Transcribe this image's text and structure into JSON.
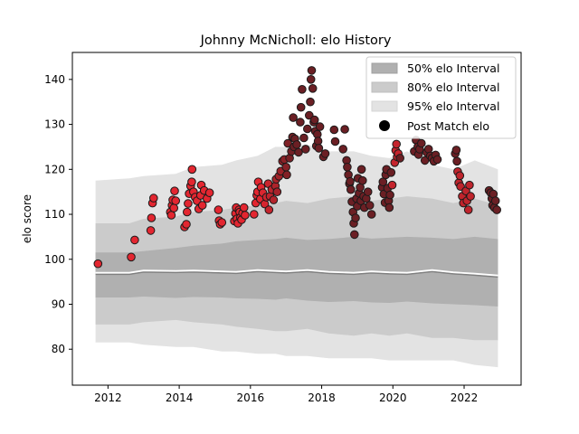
{
  "chart_data": {
    "type": "scatter",
    "title": "Johnny McNicholl: elo History",
    "xlabel": "",
    "ylabel": "elo score",
    "xlim": [
      2011.0,
      2023.6
    ],
    "ylim": [
      72,
      146
    ],
    "x_ticks": [
      2012,
      2014,
      2016,
      2018,
      2020,
      2022
    ],
    "x_tick_labels": [
      "2012",
      "2014",
      "2016",
      "2018",
      "2020",
      "2022"
    ],
    "y_ticks": [
      80,
      90,
      100,
      110,
      120,
      130,
      140
    ],
    "y_tick_labels": [
      "80",
      "90",
      "100",
      "110",
      "120",
      "130",
      "140"
    ],
    "legend": {
      "position": "top-right",
      "entries": [
        {
          "label": "50% elo Interval",
          "color": "#b0b0b0"
        },
        {
          "label": "80% elo Interval",
          "color": "#cbcbcb"
        },
        {
          "label": "95% elo Interval",
          "color": "#e3e3e3"
        },
        {
          "label": "Post Match elo",
          "color": "#000000"
        }
      ]
    },
    "colors": {
      "band50": "#b0b0b0",
      "band80": "#cbcbcb",
      "band95": "#e3e3e3",
      "median_line": "#ffffff",
      "dark_line": "#808080",
      "point_edge": "#1a1a1a",
      "early_point": "#e32630",
      "late_point": "#6b1f24"
    },
    "intervals": {
      "x": [
        2011.65,
        2012.6,
        2013.0,
        2013.9,
        2014.4,
        2015.2,
        2015.6,
        2016.2,
        2016.7,
        2017.0,
        2017.6,
        2018.2,
        2018.9,
        2019.4,
        2019.9,
        2020.4,
        2021.1,
        2021.7,
        2022.3,
        2022.95
      ],
      "median": [
        97,
        97,
        97.5,
        97.4,
        97.5,
        97.3,
        97.2,
        97.6,
        97.4,
        97.3,
        97.6,
        97.2,
        97.0,
        97.3,
        97.1,
        97.0,
        97.6,
        97.1,
        96.8,
        96.4
      ],
      "band50_low": [
        91.5,
        91.5,
        91.7,
        91.4,
        91.6,
        91.5,
        91.3,
        91.2,
        91.0,
        91.3,
        90.8,
        90.5,
        90.7,
        90.4,
        90.3,
        90.6,
        90.2,
        90.0,
        89.8,
        89.5
      ],
      "band50_high": [
        101.5,
        101.5,
        101.8,
        102.5,
        103.0,
        103.5,
        104.0,
        104.3,
        104.5,
        104.8,
        104.3,
        104.5,
        105.0,
        104.6,
        104.8,
        105.0,
        104.8,
        104.5,
        105.0,
        104.5
      ],
      "band80_low": [
        85.5,
        85.5,
        86.0,
        86.5,
        86.0,
        85.5,
        85.0,
        84.5,
        84.0,
        84.0,
        84.5,
        83.5,
        83.0,
        83.5,
        83.0,
        83.5,
        82.5,
        82.5,
        82.0,
        82.0
      ],
      "band80_high": [
        108,
        108,
        109,
        109.5,
        110.5,
        111.0,
        111.5,
        112.0,
        112.5,
        113.0,
        112.5,
        113.5,
        114.0,
        113.0,
        113.5,
        114.0,
        113.5,
        112.5,
        113.5,
        112.0
      ],
      "band95_low": [
        81.5,
        81.5,
        81.0,
        80.5,
        80.5,
        79.5,
        79.5,
        79.0,
        79.0,
        78.5,
        78.5,
        78.0,
        78.0,
        78.0,
        77.5,
        77.5,
        77.5,
        77.5,
        76.5,
        76.0
      ],
      "band95_high": [
        117.5,
        118,
        118.5,
        119,
        120.5,
        121,
        122,
        123,
        125,
        125,
        125.5,
        124,
        124,
        123,
        122.5,
        124,
        121,
        120,
        122,
        120
      ]
    },
    "points": [
      {
        "x": 2011.72,
        "y": 99.0
      },
      {
        "x": 2012.65,
        "y": 100.5
      },
      {
        "x": 2012.75,
        "y": 104.3
      },
      {
        "x": 2013.2,
        "y": 106.4
      },
      {
        "x": 2013.22,
        "y": 109.2
      },
      {
        "x": 2013.25,
        "y": 112.5
      },
      {
        "x": 2013.28,
        "y": 113.6
      },
      {
        "x": 2013.75,
        "y": 110.5
      },
      {
        "x": 2013.78,
        "y": 109.8
      },
      {
        "x": 2013.8,
        "y": 112.0
      },
      {
        "x": 2013.82,
        "y": 113.2
      },
      {
        "x": 2013.85,
        "y": 111.4
      },
      {
        "x": 2013.87,
        "y": 115.2
      },
      {
        "x": 2013.9,
        "y": 113.0
      },
      {
        "x": 2014.15,
        "y": 107.2
      },
      {
        "x": 2014.2,
        "y": 107.8
      },
      {
        "x": 2014.22,
        "y": 110.5
      },
      {
        "x": 2014.25,
        "y": 112.4
      },
      {
        "x": 2014.28,
        "y": 114.6
      },
      {
        "x": 2014.32,
        "y": 116.3
      },
      {
        "x": 2014.35,
        "y": 117.2
      },
      {
        "x": 2014.36,
        "y": 120.0
      },
      {
        "x": 2014.4,
        "y": 115.0
      },
      {
        "x": 2014.45,
        "y": 113.8
      },
      {
        "x": 2014.5,
        "y": 113.0
      },
      {
        "x": 2014.55,
        "y": 111.2
      },
      {
        "x": 2014.6,
        "y": 114.2
      },
      {
        "x": 2014.62,
        "y": 116.5
      },
      {
        "x": 2014.65,
        "y": 112.0
      },
      {
        "x": 2014.7,
        "y": 115.3
      },
      {
        "x": 2014.78,
        "y": 113.5
      },
      {
        "x": 2014.85,
        "y": 114.8
      },
      {
        "x": 2015.1,
        "y": 111.0
      },
      {
        "x": 2015.12,
        "y": 108.6
      },
      {
        "x": 2015.15,
        "y": 107.8
      },
      {
        "x": 2015.2,
        "y": 108.2
      },
      {
        "x": 2015.55,
        "y": 108.5
      },
      {
        "x": 2015.58,
        "y": 110.2
      },
      {
        "x": 2015.6,
        "y": 111.5
      },
      {
        "x": 2015.62,
        "y": 109.0
      },
      {
        "x": 2015.65,
        "y": 108.0
      },
      {
        "x": 2015.68,
        "y": 111.0
      },
      {
        "x": 2015.7,
        "y": 110.5
      },
      {
        "x": 2015.72,
        "y": 109.3
      },
      {
        "x": 2015.75,
        "y": 108.8
      },
      {
        "x": 2015.78,
        "y": 110.3
      },
      {
        "x": 2015.82,
        "y": 111.5
      },
      {
        "x": 2015.85,
        "y": 109.8
      },
      {
        "x": 2016.1,
        "y": 110.0
      },
      {
        "x": 2016.15,
        "y": 112.5
      },
      {
        "x": 2016.18,
        "y": 114.2
      },
      {
        "x": 2016.2,
        "y": 115.0
      },
      {
        "x": 2016.22,
        "y": 117.2
      },
      {
        "x": 2016.28,
        "y": 113.4
      },
      {
        "x": 2016.3,
        "y": 116.0
      },
      {
        "x": 2016.35,
        "y": 114.8
      },
      {
        "x": 2016.4,
        "y": 112.3
      },
      {
        "x": 2016.45,
        "y": 113.8
      },
      {
        "x": 2016.5,
        "y": 116.8
      },
      {
        "x": 2016.52,
        "y": 111.0
      },
      {
        "x": 2016.55,
        "y": 114.0
      },
      {
        "x": 2016.6,
        "y": 115.5
      },
      {
        "x": 2016.65,
        "y": 113.2
      },
      {
        "x": 2016.7,
        "y": 116.3
      },
      {
        "x": 2016.72,
        "y": 117.8
      },
      {
        "x": 2016.75,
        "y": 115.0
      },
      {
        "x": 2016.8,
        "y": 118.5
      },
      {
        "x": 2016.85,
        "y": 119.6
      },
      {
        "x": 2016.9,
        "y": 121.8
      },
      {
        "x": 2016.95,
        "y": 122.2
      },
      {
        "x": 2017.0,
        "y": 120.5
      },
      {
        "x": 2017.02,
        "y": 118.8
      },
      {
        "x": 2017.05,
        "y": 125.8
      },
      {
        "x": 2017.1,
        "y": 122.5
      },
      {
        "x": 2017.15,
        "y": 124.0
      },
      {
        "x": 2017.18,
        "y": 127.2
      },
      {
        "x": 2017.2,
        "y": 131.5
      },
      {
        "x": 2017.22,
        "y": 125.0
      },
      {
        "x": 2017.25,
        "y": 126.8
      },
      {
        "x": 2017.3,
        "y": 125.5
      },
      {
        "x": 2017.35,
        "y": 123.8
      },
      {
        "x": 2017.4,
        "y": 130.5
      },
      {
        "x": 2017.42,
        "y": 133.8
      },
      {
        "x": 2017.45,
        "y": 137.8
      },
      {
        "x": 2017.5,
        "y": 127.0
      },
      {
        "x": 2017.55,
        "y": 124.5
      },
      {
        "x": 2017.6,
        "y": 129.0
      },
      {
        "x": 2017.65,
        "y": 132.0
      },
      {
        "x": 2017.68,
        "y": 135.0
      },
      {
        "x": 2017.7,
        "y": 140.0
      },
      {
        "x": 2017.72,
        "y": 142.0
      },
      {
        "x": 2017.75,
        "y": 138.0
      },
      {
        "x": 2017.78,
        "y": 130.5
      },
      {
        "x": 2017.8,
        "y": 131.0
      },
      {
        "x": 2017.82,
        "y": 128.5
      },
      {
        "x": 2017.85,
        "y": 125.2
      },
      {
        "x": 2017.88,
        "y": 127.8
      },
      {
        "x": 2017.9,
        "y": 126.3
      },
      {
        "x": 2017.92,
        "y": 124.7
      },
      {
        "x": 2017.95,
        "y": 129.5
      },
      {
        "x": 2018.05,
        "y": 122.8
      },
      {
        "x": 2018.1,
        "y": 123.5
      },
      {
        "x": 2018.35,
        "y": 128.8
      },
      {
        "x": 2018.38,
        "y": 126.2
      },
      {
        "x": 2018.6,
        "y": 124.5
      },
      {
        "x": 2018.65,
        "y": 128.9
      },
      {
        "x": 2018.7,
        "y": 122.0
      },
      {
        "x": 2018.72,
        "y": 120.5
      },
      {
        "x": 2018.75,
        "y": 118.8
      },
      {
        "x": 2018.78,
        "y": 116.8
      },
      {
        "x": 2018.8,
        "y": 117.3
      },
      {
        "x": 2018.82,
        "y": 115.5
      },
      {
        "x": 2018.85,
        "y": 112.8
      },
      {
        "x": 2018.88,
        "y": 110.5
      },
      {
        "x": 2018.9,
        "y": 108.0
      },
      {
        "x": 2018.92,
        "y": 105.5
      },
      {
        "x": 2018.95,
        "y": 109.2
      },
      {
        "x": 2018.98,
        "y": 113.5
      },
      {
        "x": 2019.0,
        "y": 111.8
      },
      {
        "x": 2019.02,
        "y": 118.0
      },
      {
        "x": 2019.05,
        "y": 114.7
      },
      {
        "x": 2019.08,
        "y": 116.0
      },
      {
        "x": 2019.1,
        "y": 113.0
      },
      {
        "x": 2019.12,
        "y": 120.0
      },
      {
        "x": 2019.15,
        "y": 117.5
      },
      {
        "x": 2019.18,
        "y": 114.0
      },
      {
        "x": 2019.2,
        "y": 111.5
      },
      {
        "x": 2019.25,
        "y": 113.5
      },
      {
        "x": 2019.3,
        "y": 115.0
      },
      {
        "x": 2019.35,
        "y": 112.0
      },
      {
        "x": 2019.4,
        "y": 110.0
      },
      {
        "x": 2019.7,
        "y": 116.0
      },
      {
        "x": 2019.72,
        "y": 117.2
      },
      {
        "x": 2019.75,
        "y": 114.5
      },
      {
        "x": 2019.78,
        "y": 112.6
      },
      {
        "x": 2019.8,
        "y": 118.8
      },
      {
        "x": 2019.82,
        "y": 120.0
      },
      {
        "x": 2019.85,
        "y": 115.8
      },
      {
        "x": 2019.88,
        "y": 113.0
      },
      {
        "x": 2019.9,
        "y": 111.5
      },
      {
        "x": 2019.92,
        "y": 114.3
      },
      {
        "x": 2019.95,
        "y": 119.3
      },
      {
        "x": 2019.98,
        "y": 116.5
      },
      {
        "x": 2020.05,
        "y": 121.5
      },
      {
        "x": 2020.08,
        "y": 124.2
      },
      {
        "x": 2020.1,
        "y": 125.6
      },
      {
        "x": 2020.12,
        "y": 122.8
      },
      {
        "x": 2020.15,
        "y": 123.5
      },
      {
        "x": 2020.2,
        "y": 122.5
      },
      {
        "x": 2020.6,
        "y": 124.0
      },
      {
        "x": 2020.65,
        "y": 126.5
      },
      {
        "x": 2020.7,
        "y": 125.0
      },
      {
        "x": 2020.72,
        "y": 123.3
      },
      {
        "x": 2020.75,
        "y": 124.5
      },
      {
        "x": 2020.8,
        "y": 125.8
      },
      {
        "x": 2020.9,
        "y": 122.0
      },
      {
        "x": 2020.95,
        "y": 123.8
      },
      {
        "x": 2021.0,
        "y": 124.5
      },
      {
        "x": 2021.05,
        "y": 123.0
      },
      {
        "x": 2021.1,
        "y": 122.5
      },
      {
        "x": 2021.15,
        "y": 121.8
      },
      {
        "x": 2021.2,
        "y": 123.2
      },
      {
        "x": 2021.25,
        "y": 122.2
      },
      {
        "x": 2021.75,
        "y": 123.5
      },
      {
        "x": 2021.78,
        "y": 124.3
      },
      {
        "x": 2021.8,
        "y": 121.8
      },
      {
        "x": 2021.82,
        "y": 119.5
      },
      {
        "x": 2021.85,
        "y": 117.0
      },
      {
        "x": 2021.88,
        "y": 118.6
      },
      {
        "x": 2021.9,
        "y": 116.2
      },
      {
        "x": 2021.95,
        "y": 114.0
      },
      {
        "x": 2021.98,
        "y": 112.5
      },
      {
        "x": 2022.05,
        "y": 115.2
      },
      {
        "x": 2022.08,
        "y": 113.0
      },
      {
        "x": 2022.12,
        "y": 111.0
      },
      {
        "x": 2022.15,
        "y": 116.5
      },
      {
        "x": 2022.18,
        "y": 114.0
      },
      {
        "x": 2022.7,
        "y": 115.3
      },
      {
        "x": 2022.75,
        "y": 114.8
      },
      {
        "x": 2022.78,
        "y": 113.5
      },
      {
        "x": 2022.8,
        "y": 112.0
      },
      {
        "x": 2022.82,
        "y": 114.5
      },
      {
        "x": 2022.85,
        "y": 111.5
      },
      {
        "x": 2022.88,
        "y": 113.0
      },
      {
        "x": 2022.92,
        "y": 111.0
      }
    ]
  }
}
